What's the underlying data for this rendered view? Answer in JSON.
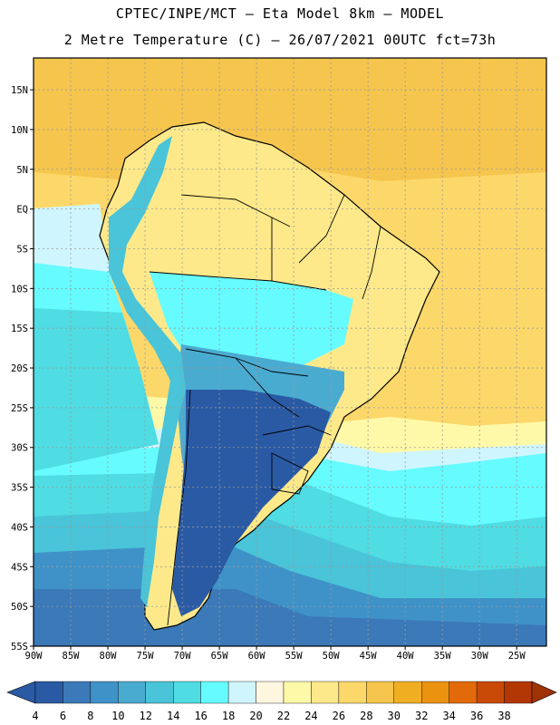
{
  "header": {
    "line1": "CPTEC/INPE/MCT –  Eta Model 8km – MODEL",
    "line2": "2 Metre Temperature (C) – 26/07/2021 00UTC fct=73h"
  },
  "map": {
    "lat_labels": [
      "15N",
      "10N",
      "5N",
      "EQ",
      "5S",
      "10S",
      "15S",
      "20S",
      "25S",
      "30S",
      "35S",
      "40S",
      "45S",
      "50S",
      "55S"
    ],
    "lon_labels": [
      "90W",
      "85W",
      "80W",
      "75W",
      "70W",
      "65W",
      "60W",
      "55W",
      "50W",
      "45W",
      "40W",
      "35W",
      "30W",
      "25W"
    ],
    "lat_range": [
      -55,
      19
    ],
    "lon_range": [
      -90,
      -21
    ]
  },
  "colorbar": {
    "levels": [
      "4",
      "6",
      "8",
      "10",
      "12",
      "14",
      "16",
      "18",
      "20",
      "22",
      "24",
      "26",
      "28",
      "30",
      "32",
      "34",
      "36",
      "38"
    ],
    "colors": [
      "#2a5aa4",
      "#3b79b8",
      "#3f92c8",
      "#4aabd1",
      "#49c4d8",
      "#4fdce3",
      "#66fbff",
      "#cff6ff",
      "#fff6e0",
      "#fef9a8",
      "#fde98a",
      "#fcd86a",
      "#f5c54d",
      "#f0ae22",
      "#eb9211",
      "#e26a0a",
      "#c94a06",
      "#b23705"
    ],
    "under_color": "#2a5aa4",
    "over_color": "#a03305"
  }
}
